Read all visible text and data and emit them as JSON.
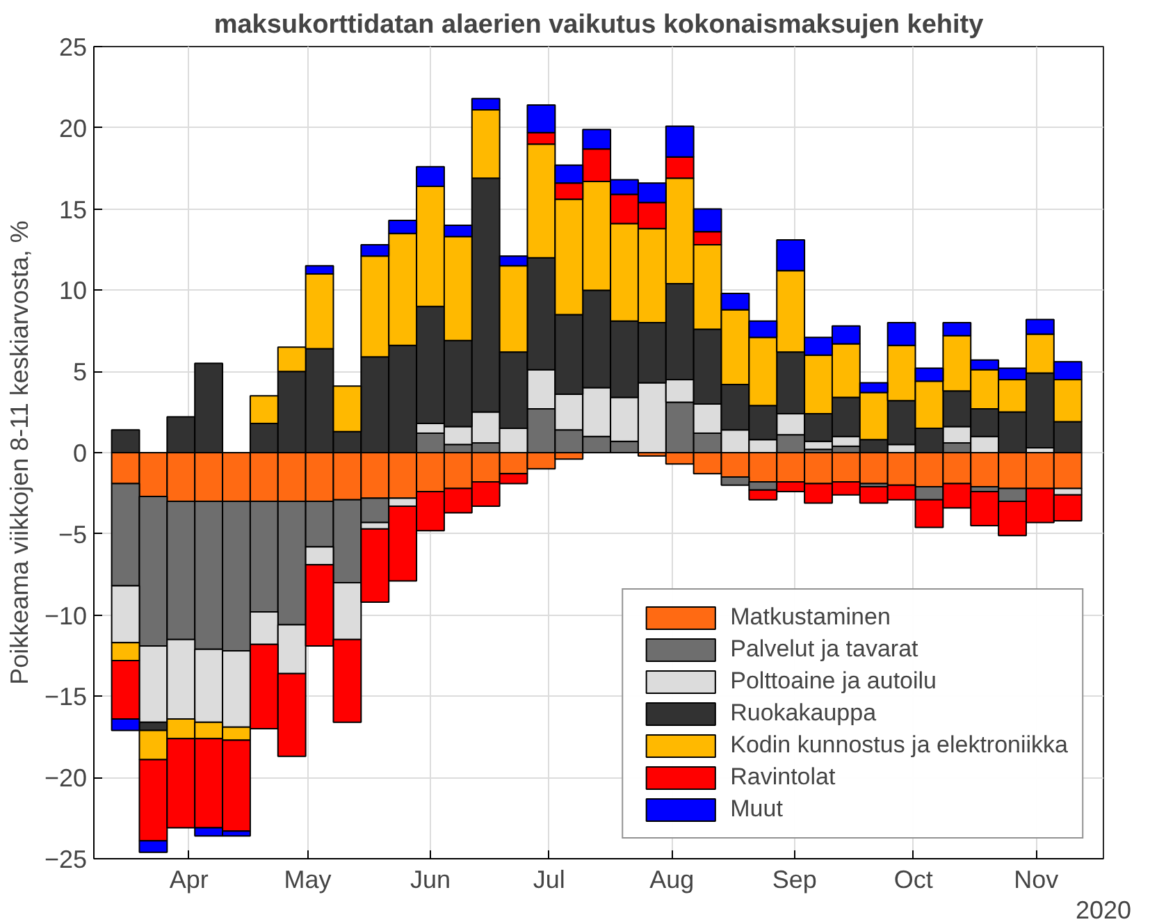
{
  "chart_data": {
    "type": "bar",
    "stacked": true,
    "title": "maksukorttidatan alaerien vaikutus kokonaismaksujen kehity",
    "ylabel": "Poikkeama viikkojen 8-11 keskiarvosta, %",
    "xlabel": "2020",
    "x": [
      "2020-03-16",
      "2020-03-23",
      "2020-03-30",
      "2020-04-06",
      "2020-04-13",
      "2020-04-20",
      "2020-04-27",
      "2020-05-04",
      "2020-05-11",
      "2020-05-18",
      "2020-05-25",
      "2020-06-01",
      "2020-06-08",
      "2020-06-15",
      "2020-06-22",
      "2020-06-29",
      "2020-07-06",
      "2020-07-13",
      "2020-07-20",
      "2020-07-27",
      "2020-08-03",
      "2020-08-10",
      "2020-08-17",
      "2020-08-24",
      "2020-08-31",
      "2020-09-07",
      "2020-09-14",
      "2020-09-21",
      "2020-09-28",
      "2020-10-05",
      "2020-10-12",
      "2020-10-19",
      "2020-10-26",
      "2020-11-02",
      "2020-11-09"
    ],
    "series": [
      {
        "name": "Matkustaminen",
        "color": "#ff6a13",
        "values": [
          -1.9,
          -2.7,
          -3.0,
          -3.0,
          -3.0,
          -3.0,
          -3.0,
          -3.0,
          -2.9,
          -2.8,
          -2.8,
          -2.4,
          -2.2,
          -1.8,
          -1.3,
          -1.0,
          -0.4,
          null,
          null,
          -0.2,
          -0.7,
          -1.3,
          -1.5,
          -1.8,
          -1.8,
          -1.9,
          -1.8,
          -1.9,
          -2.0,
          -2.1,
          -1.9,
          -2.1,
          -2.2,
          -2.2,
          -2.2
        ]
      },
      {
        "name": "Palvelut ja tavarat",
        "color": "#6e6e6e",
        "values": [
          -6.3,
          -9.2,
          -8.5,
          -9.1,
          -9.2,
          -6.8,
          -7.6,
          -2.8,
          -5.1,
          -1.5,
          null,
          1.2,
          0.5,
          0.6,
          null,
          2.7,
          1.4,
          1.0,
          0.7,
          null,
          3.1,
          1.2,
          -0.5,
          -0.5,
          1.1,
          0.2,
          0.4,
          -0.2,
          null,
          -0.8,
          0.6,
          -0.3,
          -0.8,
          null,
          null
        ]
      },
      {
        "name": "Polttoaine ja autoilu",
        "color": "#dcdcdc",
        "values": [
          -3.5,
          -4.7,
          -4.9,
          -4.5,
          -4.7,
          -2.0,
          -3.0,
          -1.1,
          -3.5,
          -0.4,
          -0.5,
          0.6,
          1.1,
          1.9,
          1.5,
          2.4,
          2.2,
          3.0,
          2.7,
          4.3,
          1.4,
          1.8,
          1.4,
          0.8,
          1.3,
          0.5,
          0.6,
          null,
          0.5,
          null,
          1.0,
          1.0,
          null,
          0.3,
          -0.4
        ]
      },
      {
        "name": "Ruokakauppa",
        "color": "#323232",
        "values": [
          1.4,
          -0.5,
          2.2,
          5.5,
          null,
          1.8,
          5.0,
          6.4,
          1.3,
          5.9,
          6.6,
          7.2,
          5.3,
          14.4,
          4.7,
          6.9,
          4.9,
          6.0,
          4.7,
          3.7,
          5.9,
          4.6,
          2.8,
          2.1,
          3.8,
          1.7,
          2.4,
          0.8,
          2.7,
          1.5,
          2.2,
          1.7,
          2.5,
          4.6,
          1.9
        ]
      },
      {
        "name": "Kodin kunnostus ja elektroniikka",
        "color": "#ffb900",
        "values": [
          -1.1,
          -1.8,
          -1.2,
          -1.0,
          -0.8,
          1.7,
          1.5,
          4.6,
          2.8,
          6.2,
          6.9,
          7.4,
          6.4,
          4.2,
          5.3,
          7.0,
          7.1,
          6.7,
          6.0,
          5.8,
          6.5,
          5.2,
          4.6,
          4.2,
          5.0,
          3.6,
          3.3,
          2.9,
          3.4,
          2.9,
          3.4,
          2.4,
          2.0,
          2.4,
          2.6
        ]
      },
      {
        "name": "Ravintolat",
        "color": "#ff0000",
        "values": [
          -3.6,
          -5.0,
          -5.5,
          -5.5,
          -5.6,
          -5.2,
          -5.1,
          -5.0,
          -5.1,
          -4.5,
          -4.6,
          -2.4,
          -1.5,
          -1.5,
          -0.6,
          0.7,
          1.0,
          2.0,
          1.8,
          1.6,
          1.3,
          0.8,
          null,
          -0.6,
          -0.6,
          -1.2,
          -0.8,
          -1.0,
          -0.9,
          -1.7,
          -1.5,
          -2.1,
          -2.1,
          -2.1,
          -1.6
        ]
      },
      {
        "name": "Muut",
        "color": "#0000ff",
        "values": [
          -0.7,
          -0.7,
          null,
          -0.5,
          -0.3,
          null,
          null,
          0.5,
          null,
          0.7,
          0.8,
          1.2,
          0.7,
          0.7,
          0.6,
          1.7,
          1.1,
          1.2,
          0.9,
          1.2,
          1.9,
          1.4,
          1.0,
          1.0,
          1.9,
          1.1,
          1.1,
          0.6,
          1.4,
          0.8,
          0.8,
          0.6,
          0.7,
          0.9,
          1.1
        ]
      }
    ],
    "xlim": [
      "2020-03-08",
      "2020-11-18"
    ],
    "xticks": [
      {
        "value": "2020-04-01",
        "label": "Apr"
      },
      {
        "value": "2020-05-01",
        "label": "May"
      },
      {
        "value": "2020-06-01",
        "label": "Jun"
      },
      {
        "value": "2020-07-01",
        "label": "Jul"
      },
      {
        "value": "2020-08-01",
        "label": "Aug"
      },
      {
        "value": "2020-09-01",
        "label": "Sep"
      },
      {
        "value": "2020-10-01",
        "label": "Oct"
      },
      {
        "value": "2020-11-01",
        "label": "Nov"
      }
    ],
    "ylim": [
      -25,
      25
    ],
    "yticks": [
      -25,
      -20,
      -15,
      -10,
      -5,
      0,
      5,
      10,
      15,
      20,
      25
    ],
    "grid": true,
    "legend": "bottom right"
  }
}
